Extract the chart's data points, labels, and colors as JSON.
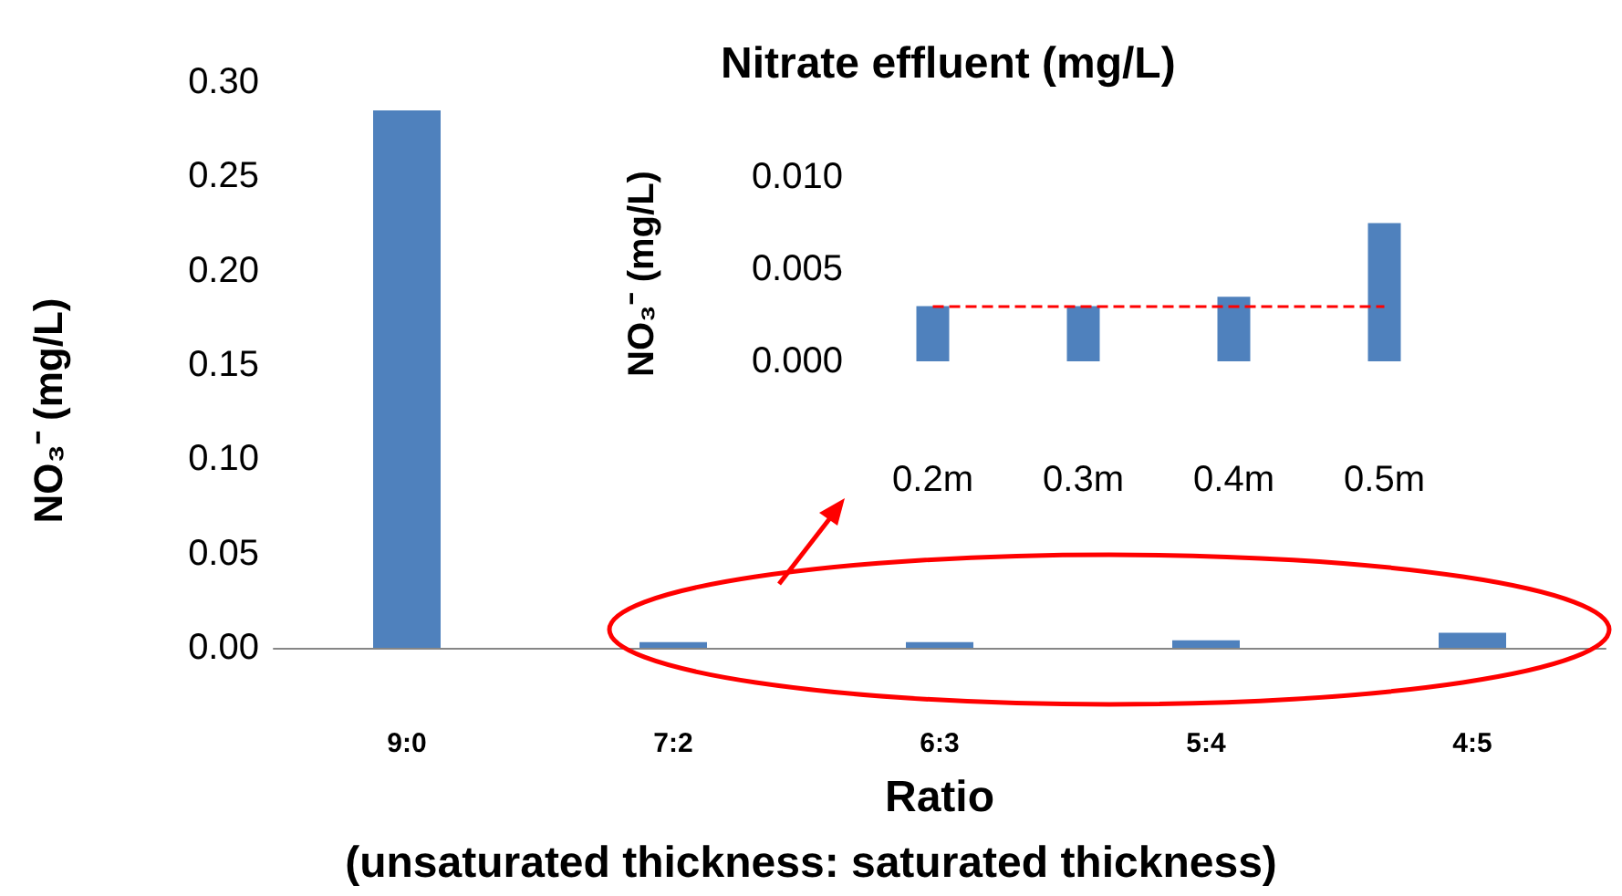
{
  "chart_data": [
    {
      "type": "bar",
      "categories": [
        "9:0",
        "7:2",
        "6:3",
        "5:4",
        "4:5"
      ],
      "values": [
        0.285,
        0.003,
        0.003,
        0.004,
        0.008
      ],
      "color": "#4f81bd",
      "ylabel": "NO₃⁻ (mg/L)",
      "xlabel": "Ratio",
      "annotations": [
        "(unsaturated thickness: saturated thickness)"
      ],
      "ylim": [
        0,
        0.3
      ],
      "yticks": [
        {
          "value": 0,
          "label": "0.00"
        },
        {
          "value": 0.05,
          "label": "0.05"
        },
        {
          "value": 0.1,
          "label": "0.10"
        },
        {
          "value": 0.15,
          "label": "0.15"
        },
        {
          "value": 0.2,
          "label": "0.20"
        },
        {
          "value": 0.25,
          "label": "0.25"
        },
        {
          "value": 0.3,
          "label": "0.30"
        }
      ]
    },
    {
      "type": "bar",
      "title": "Nitrate effluent (mg/L)",
      "categories": [
        "0.2m",
        "0.3m",
        "0.4m",
        "0.5m"
      ],
      "values": [
        0.003,
        0.003,
        0.0035,
        0.0075
      ],
      "color": "#4f81bd",
      "ylabel": "NO₃⁻ (mg/L)",
      "ylim": [
        0,
        0.01
      ],
      "yticks": [
        {
          "value": 0,
          "label": "0.000"
        },
        {
          "value": 0.005,
          "label": "0.005"
        },
        {
          "value": 0.01,
          "label": "0.010"
        }
      ],
      "ref_lines": [
        {
          "axis": "y",
          "value": 0.003,
          "color": "#ff0000",
          "line_style": "dashed"
        }
      ]
    }
  ]
}
